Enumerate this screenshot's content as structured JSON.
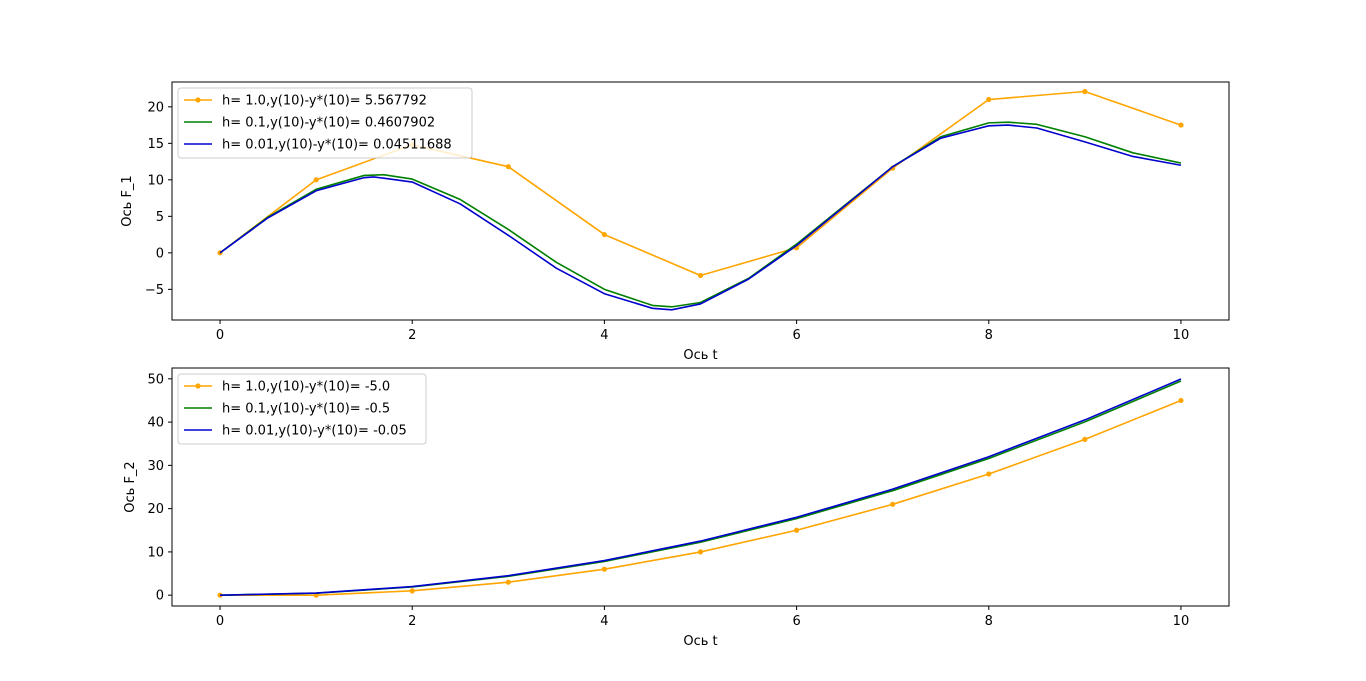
{
  "colors": {
    "h1": "#ffa500",
    "h01": "#008000",
    "h001": "#0000cd"
  },
  "chart_data": [
    {
      "type": "line",
      "xlabel": "Ось t",
      "ylabel": "Ось F_1",
      "xlim": [
        -0.5,
        10.5
      ],
      "ylim": [
        -9.2,
        23.4
      ],
      "xticks": [
        0,
        2,
        4,
        6,
        8,
        10
      ],
      "yticks": [
        -5,
        0,
        5,
        10,
        15,
        20
      ],
      "grid": false,
      "legend_position": "upper-left",
      "series": [
        {
          "name": "h= 1.0,y(10)-y*(10)= 5.567792",
          "color": "#ffa500",
          "marker": "dot",
          "x": [
            0,
            1,
            2,
            3,
            4,
            5,
            6,
            7,
            8,
            9,
            10
          ],
          "y": [
            0.0,
            10.0,
            14.8,
            11.8,
            2.5,
            -3.1,
            0.7,
            11.6,
            21.0,
            22.1,
            17.5
          ]
        },
        {
          "name": "h= 0.1,y(10)-y*(10)= 0.4607902",
          "color": "#008000",
          "marker": "none",
          "x": [
            0,
            0.5,
            1,
            1.5,
            1.7,
            2,
            2.5,
            3,
            3.5,
            4,
            4.5,
            4.7,
            5,
            5.5,
            6,
            6.5,
            7,
            7.5,
            8,
            8.2,
            8.5,
            9,
            9.5,
            10
          ],
          "y": [
            0.0,
            4.9,
            8.7,
            10.6,
            10.7,
            10.1,
            7.3,
            3.2,
            -1.3,
            -5.0,
            -7.2,
            -7.4,
            -6.8,
            -3.5,
            1.2,
            6.5,
            11.8,
            15.9,
            17.8,
            17.9,
            17.6,
            15.9,
            13.7,
            12.3
          ]
        },
        {
          "name": "h= 0.01,y(10)-y*(10)= 0.04511688",
          "color": "#0000cd",
          "marker": "none",
          "x": [
            0,
            0.5,
            1,
            1.5,
            1.6,
            2,
            2.5,
            3,
            3.5,
            4,
            4.5,
            4.7,
            5,
            5.5,
            6,
            6.5,
            7,
            7.5,
            8,
            8.2,
            8.5,
            9,
            9.5,
            10
          ],
          "y": [
            0.0,
            4.8,
            8.5,
            10.3,
            10.4,
            9.7,
            6.7,
            2.4,
            -2.1,
            -5.6,
            -7.6,
            -7.8,
            -7.0,
            -3.6,
            1.0,
            6.4,
            11.8,
            15.7,
            17.4,
            17.5,
            17.1,
            15.2,
            13.2,
            12.0
          ]
        }
      ]
    },
    {
      "type": "line",
      "xlabel": "Ось t",
      "ylabel": "Ось F_2",
      "xlim": [
        -0.5,
        10.5
      ],
      "ylim": [
        -2.5,
        52.5
      ],
      "xticks": [
        0,
        2,
        4,
        6,
        8,
        10
      ],
      "yticks": [
        0,
        10,
        20,
        30,
        40,
        50
      ],
      "grid": false,
      "legend_position": "upper-left",
      "series": [
        {
          "name": "h= 1.0,y(10)-y*(10)= -5.0",
          "color": "#ffa500",
          "marker": "dot",
          "x": [
            0,
            1,
            2,
            3,
            4,
            5,
            6,
            7,
            8,
            9,
            10
          ],
          "y": [
            0,
            0,
            1,
            3,
            6,
            10,
            15,
            21,
            28,
            36,
            45
          ]
        },
        {
          "name": "h= 0.1,y(10)-y*(10)= -0.5",
          "color": "#008000",
          "marker": "none",
          "x": [
            0,
            1,
            2,
            3,
            4,
            5,
            6,
            7,
            8,
            9,
            10
          ],
          "y": [
            0,
            0.45,
            1.9,
            4.35,
            7.8,
            12.25,
            17.7,
            24.15,
            31.6,
            40.05,
            49.5
          ]
        },
        {
          "name": "h= 0.01,y(10)-y*(10)= -0.05",
          "color": "#0000cd",
          "marker": "none",
          "x": [
            0,
            1,
            2,
            3,
            4,
            5,
            6,
            7,
            8,
            9,
            10
          ],
          "y": [
            0,
            0.5,
            2.0,
            4.5,
            8.0,
            12.5,
            18.0,
            24.5,
            32.0,
            40.5,
            49.95
          ]
        }
      ]
    }
  ]
}
